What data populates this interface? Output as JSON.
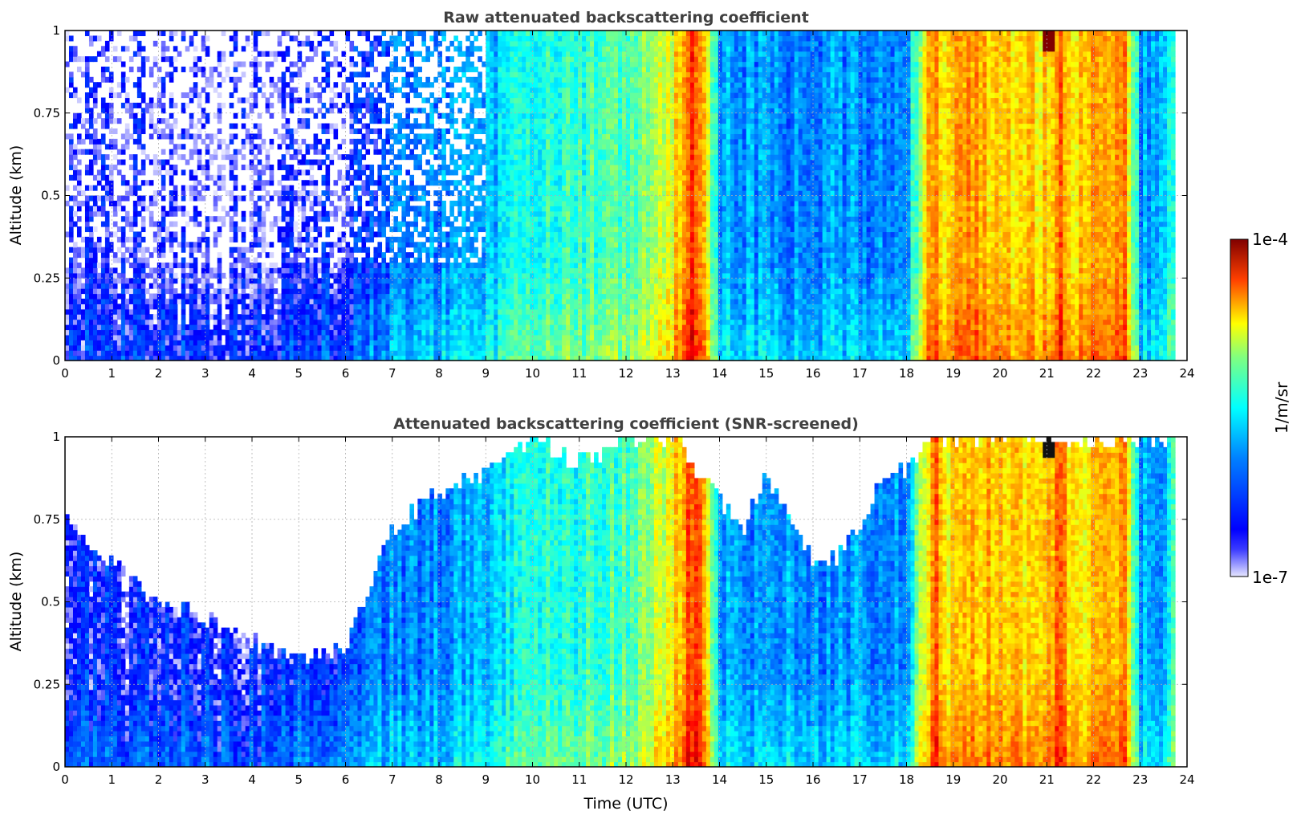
{
  "chart_data": [
    {
      "type": "heatmap",
      "title": "Raw attenuated backscattering coefficient",
      "xlabel": "",
      "ylabel": "Altitude (km)",
      "xlim": [
        0,
        24
      ],
      "ylim": [
        0,
        1
      ],
      "x_ticks": [
        "0",
        "1",
        "2",
        "3",
        "4",
        "5",
        "6",
        "7",
        "8",
        "9",
        "10",
        "11",
        "12",
        "13",
        "14",
        "15",
        "16",
        "17",
        "18",
        "19",
        "20",
        "21",
        "22",
        "23",
        "24"
      ],
      "y_ticks": [
        "0",
        "0.25",
        "0.5",
        "0.75",
        "1"
      ],
      "y_tick_values": [
        0,
        0.25,
        0.5,
        0.75,
        1
      ],
      "grid": true,
      "screened": false,
      "time_profile": {
        "x": [
          0,
          1,
          2,
          3,
          4,
          5,
          6,
          6.5,
          7,
          8,
          9,
          9.5,
          10,
          11,
          12,
          13,
          13.4,
          13.6,
          14,
          15,
          16,
          17,
          18,
          18.6,
          18.8,
          19.3,
          20,
          21,
          21.3,
          21.5,
          22,
          22.7,
          23,
          23.5,
          23.8
        ],
        "log10_value": [
          -6.9,
          -6.9,
          -6.9,
          -6.9,
          -6.9,
          -6.85,
          -6.75,
          -6.6,
          -6.45,
          -6.35,
          -6.25,
          -6.05,
          -5.95,
          -5.85,
          -5.75,
          -5.25,
          -4.6,
          -4.7,
          -6.3,
          -6.35,
          -6.35,
          -6.35,
          -6.3,
          -4.7,
          -5.2,
          -4.9,
          -5.1,
          -5.1,
          -4.6,
          -5.2,
          -5.0,
          -4.9,
          -6.3,
          -6.2,
          -5.8
        ]
      },
      "features": [
        {
          "label": "cloud",
          "x_range": [
            20.9,
            21.2
          ],
          "altitude_range": [
            0.93,
            1.0
          ],
          "log10_value": -4.0
        }
      ]
    },
    {
      "type": "heatmap",
      "title": "Attenuated backscattering coefficient (SNR-screened)",
      "xlabel": "Time (UTC)",
      "ylabel": "Altitude (km)",
      "xlim": [
        0,
        24
      ],
      "ylim": [
        0,
        1
      ],
      "x_ticks": [
        "0",
        "1",
        "2",
        "3",
        "4",
        "5",
        "6",
        "7",
        "8",
        "9",
        "10",
        "11",
        "12",
        "13",
        "14",
        "15",
        "16",
        "17",
        "18",
        "19",
        "20",
        "21",
        "22",
        "23",
        "24"
      ],
      "y_ticks": [
        "0",
        "0.25",
        "0.5",
        "0.75",
        "1"
      ],
      "y_tick_values": [
        0,
        0.25,
        0.5,
        0.75,
        1
      ],
      "grid": true,
      "screened": true,
      "valid_top_altitude": {
        "x": [
          0,
          1,
          2,
          3,
          4,
          5,
          6,
          6.3,
          6.7,
          7,
          8,
          9,
          9.6,
          10,
          11,
          12,
          13,
          14,
          14.5,
          15,
          15.5,
          16,
          16.5,
          17,
          17.5,
          18,
          18.6,
          23.8
        ],
        "altitude": [
          0.75,
          0.62,
          0.5,
          0.45,
          0.38,
          0.32,
          0.36,
          0.48,
          0.62,
          0.72,
          0.84,
          0.9,
          0.97,
          1.0,
          0.92,
          1.0,
          1.0,
          0.8,
          0.72,
          0.88,
          0.76,
          0.62,
          0.64,
          0.74,
          0.86,
          0.9,
          1.0,
          1.0
        ]
      },
      "time_profile": {
        "x": [
          0,
          1,
          2,
          3,
          4,
          5,
          6,
          6.5,
          7,
          8,
          9,
          9.5,
          10,
          11,
          12,
          13,
          13.4,
          13.6,
          14,
          15,
          16,
          17,
          18,
          18.6,
          18.8,
          19.3,
          20,
          21,
          21.3,
          21.5,
          22,
          22.7,
          23,
          23.5,
          23.8
        ],
        "log10_value": [
          -6.75,
          -6.75,
          -6.75,
          -6.75,
          -6.75,
          -6.7,
          -6.65,
          -6.5,
          -6.4,
          -6.35,
          -6.25,
          -6.05,
          -5.95,
          -5.85,
          -5.75,
          -5.25,
          -4.6,
          -4.7,
          -6.3,
          -6.35,
          -6.35,
          -6.35,
          -6.3,
          -4.7,
          -5.2,
          -4.9,
          -5.1,
          -5.1,
          -4.6,
          -5.2,
          -5.0,
          -4.9,
          -6.3,
          -6.2,
          -5.8
        ]
      },
      "features": [
        {
          "label": "cloud",
          "x_range": [
            20.9,
            21.2
          ],
          "altitude_range": [
            0.93,
            1.0
          ],
          "log10_value": -3.9
        }
      ]
    }
  ],
  "colorbar": {
    "label": "1/m/sr",
    "max_label": "1e-4",
    "min_label": "1e-7",
    "log10_range": [
      -7,
      -4
    ],
    "colormap": "jet"
  }
}
